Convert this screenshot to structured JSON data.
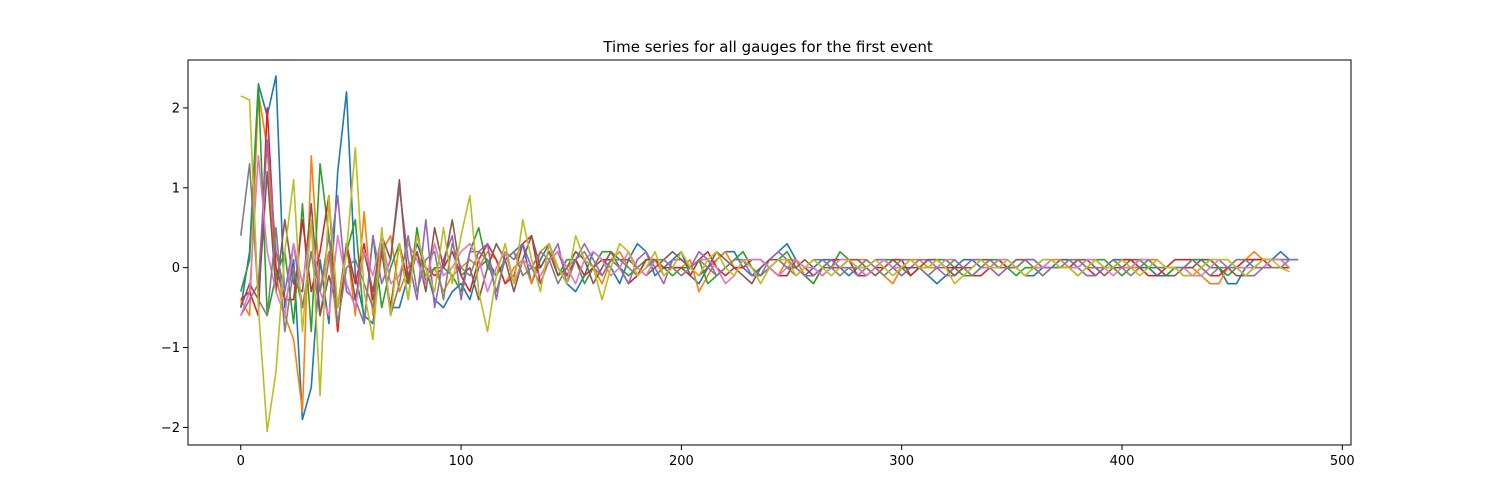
{
  "chart_data": {
    "type": "line",
    "title": "Time series for all gauges for the first event",
    "xlabel": "",
    "ylabel": "",
    "xlim": [
      -23.95,
      503.95
    ],
    "ylim": [
      -2.22,
      2.6
    ],
    "x_ticks": [
      0,
      100,
      200,
      300,
      400,
      500
    ],
    "y_ticks": [
      -2,
      -1,
      0,
      1,
      2
    ],
    "grid": false,
    "legend": "none",
    "x_start": 0,
    "x_step": 4,
    "series": [
      {
        "color": "#1f77b4",
        "values": [
          -0.5,
          0.2,
          2.3,
          1.9,
          2.4,
          -0.5,
          0.1,
          -1.9,
          -1.5,
          0.1,
          -0.7,
          1.2,
          2.2,
          -0.1,
          -0.6,
          -0.7,
          0.2,
          -0.5,
          -0.5,
          -0.1,
          0.3,
          0.0,
          -0.4,
          -0.5,
          -0.3,
          -0.2,
          -0.4,
          0.0,
          0.1,
          -0.1,
          0.1,
          0.2,
          0.3,
          -0.2,
          0.1,
          0.3,
          0.0,
          -0.2,
          -0.3,
          -0.1,
          0.2,
          0.1,
          0.0,
          -0.2,
          0.1,
          0.3,
          0.2,
          -0.1,
          0.0,
          0.1,
          0.2,
          -0.1,
          -0.2,
          0.0,
          0.1,
          0.2,
          0.2,
          0.0,
          -0.1,
          0.0,
          0.1,
          0.2,
          0.3,
          0.1,
          -0.1,
          0.0,
          0.1,
          0.1,
          0.0,
          -0.1,
          0.0,
          0.0,
          0.1,
          0.1,
          0.0,
          -0.1,
          0.0,
          0.0,
          -0.1,
          -0.2,
          -0.1,
          0.0,
          0.1,
          0.1,
          0.0,
          0.0,
          0.1,
          0.1,
          0.0,
          -0.1,
          -0.1,
          0.0,
          0.0,
          0.1,
          0.1,
          0.0,
          -0.1,
          -0.1,
          0.0,
          0.1,
          0.1,
          0.1,
          0.0,
          0.0,
          -0.1,
          -0.1,
          0.0,
          0.0,
          0.1,
          0.1,
          0.1,
          0.0,
          -0.2,
          -0.2,
          0.0,
          0.1,
          0.1,
          0.1,
          0.2,
          0.1,
          0.1
        ]
      },
      {
        "color": "#ff7f0e",
        "values": [
          -0.4,
          -0.6,
          2.2,
          1.5,
          -0.1,
          -0.6,
          -0.9,
          -1.8,
          1.4,
          -0.3,
          0.2,
          -0.8,
          0.3,
          -0.6,
          0.7,
          -0.6,
          0.2,
          0.4,
          -0.3,
          0.0,
          0.2,
          -0.1,
          0.0,
          -0.3,
          -0.1,
          0.0,
          0.1,
          0.0,
          0.2,
          0.1,
          -0.2,
          0.0,
          0.1,
          -0.2,
          0.2,
          0.3,
          -0.1,
          0.0,
          0.2,
          0.1,
          0.0,
          -0.2,
          0.1,
          0.2,
          0.0,
          -0.1,
          0.1,
          0.1,
          -0.1,
          0.0,
          0.0,
          0.1,
          -0.3,
          -0.1,
          0.1,
          0.2,
          0.0,
          0.0,
          0.1,
          0.1,
          0.0,
          -0.1,
          0.1,
          0.1,
          -0.1,
          -0.2,
          0.0,
          0.1,
          0.0,
          0.1,
          0.1,
          0.1,
          0.0,
          -0.1,
          -0.2,
          0.0,
          0.1,
          0.1,
          0.0,
          0.0,
          0.0,
          -0.1,
          0.0,
          0.1,
          0.1,
          0.0,
          -0.1,
          0.0,
          0.0,
          0.1,
          0.1,
          0.0,
          0.1,
          0.1,
          0.0,
          0.0,
          0.1,
          0.1,
          0.0,
          0.0,
          0.1,
          0.0,
          0.0,
          0.1,
          0.1,
          0.0,
          0.0,
          0.0,
          0.0,
          -0.1,
          -0.2,
          -0.2,
          0.0,
          0.1,
          0.1,
          0.2,
          0.1,
          0.1,
          0.1,
          0.1
        ]
      },
      {
        "color": "#2ca02c",
        "values": [
          -0.3,
          0.1,
          2.3,
          -0.6,
          -0.1,
          0.2,
          -0.7,
          0.8,
          -0.8,
          1.3,
          0.4,
          -0.5,
          0.2,
          0.6,
          -0.7,
          0.4,
          -0.5,
          0.0,
          0.3,
          -0.4,
          0.5,
          -0.2,
          0.0,
          0.0,
          -0.1,
          -0.3,
          0.2,
          0.5,
          0.0,
          -0.1,
          0.1,
          0.2,
          -0.1,
          0.0,
          0.0,
          0.2,
          -0.1,
          0.1,
          0.1,
          -0.2,
          0.0,
          0.2,
          0.2,
          0.0,
          -0.1,
          0.0,
          0.1,
          0.1,
          0.0,
          -0.1,
          0.0,
          0.0,
          0.1,
          -0.2,
          -0.1,
          0.0,
          0.1,
          0.2,
          0.0,
          -0.1,
          0.0,
          0.1,
          0.2,
          0.0,
          -0.1,
          -0.2,
          0.0,
          0.0,
          0.2,
          0.1,
          0.0,
          -0.1,
          0.0,
          0.1,
          0.1,
          0.0,
          -0.1,
          0.0,
          0.0,
          0.1,
          0.1,
          0.0,
          -0.1,
          -0.1,
          0.0,
          0.1,
          0.1,
          0.0,
          -0.1,
          0.0,
          0.0,
          0.1,
          0.1,
          0.0,
          0.0,
          -0.1,
          0.0,
          0.1,
          0.1,
          0.0,
          -0.1,
          0.0,
          0.1,
          0.0,
          0.0,
          -0.1,
          0.0,
          0.0,
          0.1,
          0.1,
          0.0,
          0.0,
          -0.1,
          0.0,
          0.1,
          0.1,
          0.1,
          0.1,
          0.1,
          0.1
        ]
      },
      {
        "color": "#d62728",
        "values": [
          -0.4,
          -0.3,
          -0.6,
          2.0,
          0.0,
          -0.4,
          -0.4,
          0.6,
          -0.3,
          0.2,
          0.9,
          -0.8,
          0.3,
          -0.2,
          0.3,
          -0.4,
          0.2,
          -0.5,
          0.3,
          -0.2,
          0.4,
          0.0,
          -0.1,
          0.0,
          0.2,
          -0.1,
          -0.3,
          0.1,
          0.3,
          0.1,
          -0.2,
          -0.1,
          0.3,
          0.4,
          -0.2,
          0.1,
          0.2,
          -0.1,
          0.1,
          -0.1,
          0.0,
          0.1,
          0.1,
          0.0,
          -0.2,
          -0.1,
          0.1,
          0.1,
          0.0,
          0.0,
          0.0,
          -0.1,
          0.1,
          0.2,
          0.0,
          -0.1,
          0.0,
          0.0,
          0.1,
          0.1,
          0.0,
          -0.1,
          -0.1,
          0.1,
          0.0,
          -0.1,
          0.0,
          0.1,
          0.1,
          0.1,
          -0.1,
          -0.1,
          0.0,
          0.0,
          0.1,
          0.1,
          -0.1,
          0.0,
          0.1,
          0.1,
          0.0,
          0.0,
          0.0,
          -0.1,
          -0.1,
          0.0,
          0.1,
          0.0,
          0.0,
          0.1,
          0.1,
          0.0,
          0.0,
          0.0,
          0.0,
          0.1,
          0.0,
          -0.1,
          0.0,
          0.0,
          0.1,
          0.1,
          0.0,
          -0.1,
          -0.1,
          0.0,
          0.1,
          0.1,
          0.1,
          0.0,
          -0.1,
          -0.1,
          0.0,
          0.0,
          0.1,
          0.1,
          0.1,
          0.0,
          0.0,
          0.0
        ]
      },
      {
        "color": "#9467bd",
        "values": [
          -0.6,
          -0.4,
          -0.2,
          1.6,
          0.2,
          -0.3,
          0.3,
          -0.5,
          0.2,
          -0.6,
          0.1,
          0.9,
          -0.3,
          -0.4,
          -0.7,
          0.4,
          -0.2,
          0.1,
          1.0,
          0.1,
          -0.4,
          0.6,
          -0.5,
          0.1,
          0.4,
          -0.4,
          0.2,
          0.2,
          0.3,
          -0.4,
          0.2,
          0.1,
          0.3,
          0.0,
          -0.2,
          0.1,
          0.3,
          -0.2,
          0.1,
          0.3,
          0.1,
          -0.1,
          0.1,
          0.0,
          -0.2,
          0.1,
          0.2,
          0.0,
          -0.2,
          0.1,
          0.1,
          0.0,
          0.2,
          0.1,
          -0.1,
          0.0,
          0.1,
          0.1,
          -0.1,
          -0.1,
          0.1,
          0.2,
          0.1,
          0.0,
          -0.1,
          -0.1,
          0.0,
          0.1,
          0.0,
          0.0,
          -0.1,
          0.0,
          0.1,
          0.1,
          0.0,
          -0.1,
          0.0,
          0.1,
          0.1,
          0.0,
          -0.1,
          -0.1,
          0.0,
          0.1,
          0.1,
          0.0,
          -0.1,
          0.0,
          0.0,
          0.1,
          0.1,
          0.0,
          0.0,
          0.0,
          0.1,
          0.0,
          -0.1,
          -0.1,
          0.0,
          0.1,
          0.0,
          0.0,
          0.1,
          0.1,
          0.0,
          0.0,
          0.0,
          -0.1,
          -0.1,
          0.0,
          0.1,
          0.1,
          0.0,
          0.0,
          -0.1,
          -0.1,
          0.0,
          0.1,
          0.1,
          0.1,
          0.1
        ]
      },
      {
        "color": "#8c564b",
        "values": [
          -0.5,
          -0.2,
          -0.4,
          1.2,
          -0.3,
          0.6,
          -0.2,
          -0.3,
          0.8,
          -0.6,
          -0.1,
          -0.5,
          0.3,
          -0.4,
          0.2,
          -0.3,
          0.4,
          0.1,
          1.1,
          -0.2,
          0.2,
          -0.3,
          0.5,
          0.0,
          0.6,
          -0.1,
          0.0,
          -0.4,
          0.0,
          0.3,
          0.1,
          -0.3,
          0.1,
          0.4,
          0.0,
          0.2,
          -0.1,
          0.0,
          0.2,
          0.1,
          -0.2,
          0.0,
          0.2,
          0.1,
          0.1,
          0.0,
          -0.1,
          0.0,
          0.1,
          0.2,
          0.1,
          0.0,
          -0.1,
          0.0,
          0.2,
          0.1,
          0.0,
          -0.1,
          -0.2,
          0.0,
          0.1,
          0.1,
          0.0,
          0.0,
          0.1,
          0.0,
          -0.1,
          0.0,
          0.0,
          0.1,
          0.1,
          0.0,
          -0.1,
          0.0,
          0.1,
          0.0,
          0.0,
          0.0,
          0.1,
          0.1,
          0.0,
          -0.1,
          0.0,
          0.0,
          0.1,
          0.1,
          0.0,
          0.0,
          0.1,
          0.1,
          0.0,
          -0.1,
          0.0,
          0.0,
          0.0,
          0.1,
          0.1,
          0.0,
          -0.1,
          0.0,
          0.0,
          0.1,
          0.1,
          0.1,
          0.0,
          -0.1,
          -0.1,
          0.0,
          0.0,
          0.1,
          0.1,
          0.0,
          0.0,
          -0.1,
          -0.1,
          0.0,
          0.1,
          0.1,
          0.1,
          0.0
        ]
      },
      {
        "color": "#e377c2",
        "values": [
          -0.6,
          -0.3,
          1.4,
          0.2,
          -0.3,
          -0.6,
          0.3,
          -0.2,
          0.5,
          -0.3,
          -0.6,
          0.4,
          -0.2,
          -0.5,
          0.2,
          -0.1,
          0.4,
          -0.2,
          -0.1,
          0.3,
          0.1,
          -0.2,
          0.3,
          -0.1,
          0.0,
          0.2,
          0.3,
          0.1,
          -0.3,
          0.0,
          0.2,
          -0.2,
          0.1,
          0.0,
          -0.1,
          0.1,
          0.2,
          0.0,
          -0.2,
          0.1,
          0.2,
          0.1,
          -0.1,
          0.0,
          0.2,
          0.0,
          -0.1,
          0.1,
          0.1,
          0.0,
          -0.1,
          0.0,
          0.1,
          0.1,
          0.0,
          -0.2,
          -0.1,
          0.1,
          0.1,
          0.1,
          0.0,
          -0.1,
          0.0,
          0.1,
          0.0,
          0.0,
          -0.1,
          0.0,
          0.1,
          0.1,
          0.0,
          -0.1,
          0.0,
          0.1,
          0.0,
          0.0,
          0.1,
          0.0,
          -0.1,
          0.0,
          0.1,
          0.1,
          0.0,
          -0.1,
          0.0,
          0.0,
          0.1,
          0.1,
          0.0,
          -0.1,
          0.0,
          0.0,
          0.1,
          0.0,
          0.0,
          0.0,
          0.1,
          0.1,
          0.0,
          -0.1,
          0.0,
          0.0,
          0.1,
          0.1,
          0.0,
          0.0,
          0.0,
          0.0,
          -0.1,
          -0.1,
          0.0,
          0.1,
          0.1,
          0.0,
          0.0,
          0.0,
          0.0,
          0.1,
          0.1,
          0.0
        ]
      },
      {
        "color": "#7f7f7f",
        "values": [
          0.4,
          1.3,
          -0.4,
          -0.6,
          0.5,
          -0.8,
          0.0,
          -0.5,
          0.2,
          -0.3,
          0.4,
          -0.7,
          0.0,
          0.1,
          -0.2,
          -0.5,
          0.3,
          -0.6,
          -0.2,
          0.4,
          -0.3,
          0.1,
          0.2,
          -0.4,
          0.3,
          0.0,
          -0.1,
          0.2,
          0.1,
          -0.3,
          0.1,
          0.2,
          -0.1,
          0.0,
          0.2,
          0.1,
          -0.2,
          0.0,
          0.1,
          0.2,
          0.0,
          -0.1,
          0.1,
          0.1,
          0.0,
          -0.1,
          0.0,
          0.1,
          0.1,
          0.0,
          -0.1,
          0.0,
          0.1,
          0.0,
          -0.1,
          0.0,
          0.1,
          0.1,
          0.0,
          -0.1,
          0.0,
          0.1,
          0.0,
          -0.1,
          0.0,
          0.1,
          0.1,
          0.0,
          -0.1,
          0.0,
          0.0,
          0.1,
          0.0,
          -0.1,
          0.0,
          0.1,
          0.1,
          0.0,
          -0.1,
          0.0,
          0.0,
          0.1,
          0.0,
          -0.1,
          0.0,
          0.1,
          0.0,
          0.0,
          0.0,
          0.1,
          0.0,
          -0.1,
          0.0,
          0.0,
          0.1,
          0.1,
          0.0,
          0.0,
          0.0,
          0.1,
          0.0,
          -0.1,
          0.0,
          0.1,
          0.0,
          0.0,
          0.0,
          0.0,
          0.1,
          0.0,
          -0.1,
          0.0,
          0.0,
          0.1,
          0.1,
          0.0,
          0.0,
          0.0,
          0.0,
          0.1
        ]
      },
      {
        "color": "#bcbd22",
        "values": [
          2.15,
          2.1,
          -0.5,
          -2.05,
          -1.3,
          0.2,
          1.1,
          -0.8,
          0.6,
          -1.6,
          0.9,
          -0.5,
          0.2,
          1.5,
          -0.3,
          -0.9,
          0.5,
          -0.6,
          0.3,
          -0.4,
          0.4,
          0.0,
          -0.3,
          0.5,
          -0.2,
          0.4,
          0.9,
          -0.3,
          -0.8,
          -0.1,
          0.3,
          -0.2,
          0.6,
          0.1,
          -0.3,
          0.3,
          0.0,
          -0.2,
          0.4,
          0.1,
          0.0,
          -0.4,
          0.0,
          0.3,
          0.2,
          -0.1,
          0.0,
          0.2,
          -0.1,
          0.0,
          0.2,
          0.0,
          -0.1,
          0.1,
          0.2,
          0.0,
          -0.1,
          0.1,
          0.0,
          -0.2,
          0.0,
          0.1,
          0.1,
          -0.1,
          0.0,
          0.1,
          0.0,
          -0.1,
          0.0,
          0.1,
          0.0,
          0.0,
          0.1,
          0.0,
          -0.1,
          0.0,
          0.1,
          0.0,
          0.0,
          0.1,
          0.0,
          -0.2,
          -0.1,
          0.0,
          0.1,
          0.0,
          0.0,
          0.1,
          0.0,
          -0.1,
          0.0,
          0.1,
          0.1,
          0.0,
          0.0,
          -0.1,
          0.0,
          0.1,
          0.0,
          0.0,
          0.1,
          0.0,
          -0.1,
          0.0,
          0.1,
          0.0,
          0.0,
          -0.1,
          -0.1,
          0.0,
          0.1,
          0.1,
          0.1,
          0.0,
          -0.1,
          0.0,
          0.1,
          0.1,
          0.0,
          -0.05
        ]
      }
    ]
  }
}
